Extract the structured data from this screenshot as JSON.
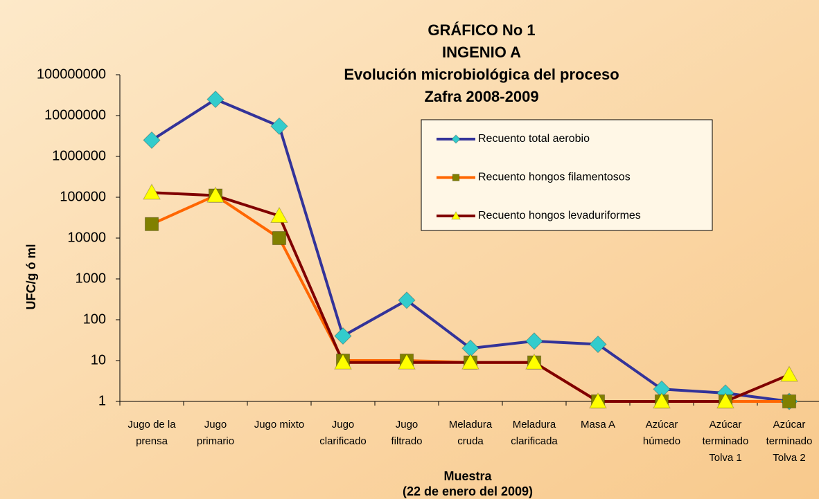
{
  "chart_data": {
    "type": "line",
    "title": [
      "GRÁFICO No 1",
      "INGENIO A",
      "Evolución microbiológica del proceso",
      "Zafra 2008-2009"
    ],
    "x_label": [
      "Muestra",
      "(22 de enero del 2009)"
    ],
    "y_label": "UFC/g ó ml",
    "categories": [
      [
        "Jugo de la",
        "prensa"
      ],
      [
        "Jugo",
        "primario"
      ],
      [
        "Jugo mixto"
      ],
      [
        "Jugo",
        "clarificado"
      ],
      [
        "Jugo",
        "filtrado"
      ],
      [
        "Meladura",
        "cruda"
      ],
      [
        "Meladura",
        "clarificada"
      ],
      [
        "Masa A"
      ],
      [
        "Azúcar",
        "húmedo"
      ],
      [
        "Azúcar",
        "terminado",
        "Tolva 1"
      ],
      [
        "Azúcar",
        "terminado",
        "Tolva 2"
      ]
    ],
    "log_scale": true,
    "ylim": [
      1,
      100000000
    ],
    "yticks": [
      1,
      10,
      100,
      1000,
      10000,
      100000,
      1000000,
      10000000,
      100000000
    ],
    "legend": "upper right",
    "series": [
      {
        "name": "Recuento total aerobio",
        "color": "#333399",
        "marker": "diamond",
        "marker_color": "#33cccc",
        "values": [
          2500000,
          25000000,
          5500000,
          40,
          300,
          20,
          30,
          25,
          2,
          1.6,
          1
        ]
      },
      {
        "name": "Recuento hongos filamentosos",
        "color": "#ff6600",
        "marker": "square",
        "marker_color": "#808000",
        "values": [
          22000,
          110000,
          10000,
          10,
          10,
          9,
          9,
          1,
          1,
          1,
          1
        ]
      },
      {
        "name": "Recuento hongos levaduriformes",
        "color": "#800000",
        "marker": "triangle",
        "marker_color": "#ffff00",
        "values": [
          130000,
          110000,
          35000,
          9,
          9,
          9,
          9,
          1,
          1,
          1,
          4.5
        ]
      }
    ]
  }
}
